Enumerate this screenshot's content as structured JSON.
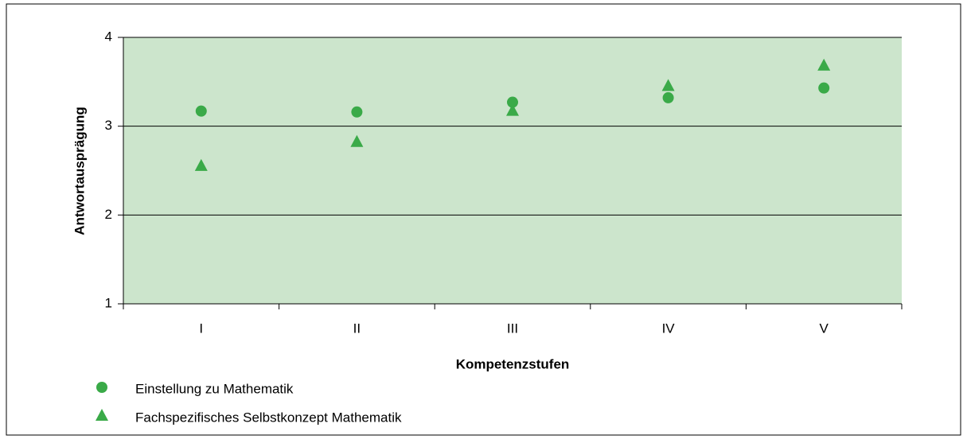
{
  "chart_data": {
    "type": "scatter",
    "categories": [
      "I",
      "II",
      "III",
      "IV",
      "V"
    ],
    "series": [
      {
        "name": "Einstellung zu Mathematik",
        "color": "#3aaa48",
        "marker": "circle",
        "values": [
          3.17,
          3.16,
          3.27,
          3.32,
          3.43
        ]
      },
      {
        "name": "Fachspezifisches Selbstkonzept Mathematik",
        "color": "#3aaa48",
        "marker": "triangle",
        "values": [
          2.55,
          2.82,
          3.17,
          3.45,
          3.68
        ]
      }
    ],
    "xlabel": "Kompetenzstufen",
    "ylabel": "Antwortausprägung",
    "ylim": [
      1,
      4
    ],
    "yticks": [
      1,
      2,
      3,
      4
    ],
    "grid": true,
    "plot_background": "#cce5cc",
    "legend": "bottom-left"
  }
}
